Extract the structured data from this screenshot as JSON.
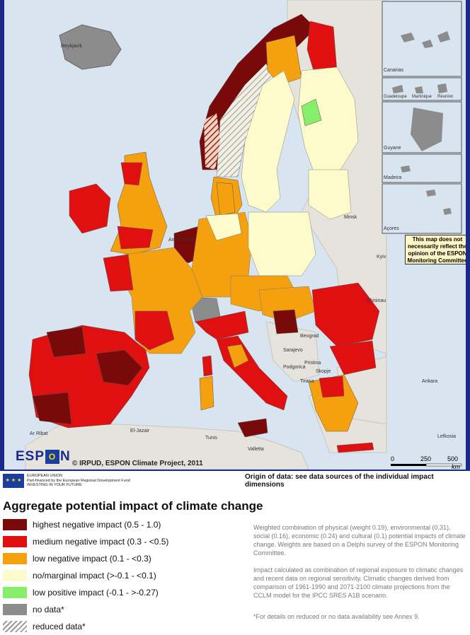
{
  "map": {
    "title": "Aggregate potential impact of climate change",
    "notice": "This map does not necessarily reflect the opinion of the ESPON Monitoring Committee",
    "copyright": "© IRPUD, ESPON Climate Project, 2011",
    "logo": {
      "left": "ESP",
      "mid": "O",
      "right": "N"
    },
    "origin": "Origin of data: see data sources of the individual impact dimensions",
    "eu_text": [
      "EUROPEAN UNION",
      "Part-financed by the European Regional Development Fund",
      "INVESTING IN YOUR FUTURE"
    ],
    "eu_flag": "★ ★ ★",
    "scale": {
      "ticks": [
        "0",
        "250",
        "500"
      ],
      "unit": "km"
    },
    "insets": [
      "Canarias",
      "Guadeloupe",
      "Martinique",
      "Réunion",
      "Guyane",
      "Madeira",
      "Açores"
    ],
    "places": [
      "Reykjavik",
      "Minsk",
      "Kyiv",
      "Chisinau",
      "Beograd",
      "Sarajevo",
      "Pristina",
      "Podgorica",
      "Skopje",
      "Tirana",
      "Ankara",
      "Lefkosia",
      "Ar Ribat",
      "El-Jazair",
      "Tunis",
      "Valletta",
      "Amsterdam"
    ]
  },
  "legend": {
    "items": [
      {
        "label": "highest negative impact (0.5 - 1.0)",
        "color": "#7a0a0a"
      },
      {
        "label": "medium negative impact (0.3 - <0.5)",
        "color": "#e01010"
      },
      {
        "label": "low negative impact (0.1 - <0.3)",
        "color": "#f5a00e"
      },
      {
        "label": "no/marginal impact (>-0.1 - <0.1)",
        "color": "#fdfbcb"
      },
      {
        "label": "low positive impact (-0.1 - >-0.27)",
        "color": "#86ee6a"
      },
      {
        "label": "no data*",
        "color": "#8c8c8c"
      },
      {
        "label": "reduced data*",
        "color": "hatch"
      }
    ]
  },
  "description": {
    "p1": "Weighted combination of physical (weight 0.19), environmental (0.31), social (0.16), economic (0.24) and cultural (0.1) potential impacts of climate change. Weights are based on a Delphi survey of the ESPON Monitoring Committee.",
    "p2": "Impact calculated as combination of regional exposure to climatic changes and recent data on regional sensitivity. Climatic changes derived from comparison of 1961-1990 and 2071-2100 climate projections from the CCLM model for the IPCC SRES A1B scenario.",
    "p3": "*For details on reduced or no data availability see Annex 9."
  }
}
